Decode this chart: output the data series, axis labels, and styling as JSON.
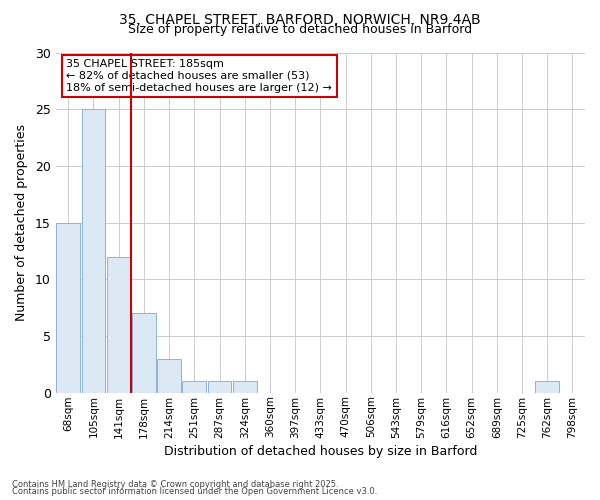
{
  "title_line1": "35, CHAPEL STREET, BARFORD, NORWICH, NR9 4AB",
  "title_line2": "Size of property relative to detached houses in Barford",
  "xlabel": "Distribution of detached houses by size in Barford",
  "ylabel": "Number of detached properties",
  "categories": [
    "68sqm",
    "105sqm",
    "141sqm",
    "178sqm",
    "214sqm",
    "251sqm",
    "287sqm",
    "324sqm",
    "360sqm",
    "397sqm",
    "433sqm",
    "470sqm",
    "506sqm",
    "543sqm",
    "579sqm",
    "616sqm",
    "652sqm",
    "689sqm",
    "725sqm",
    "762sqm",
    "798sqm"
  ],
  "values": [
    15,
    25,
    12,
    7,
    3,
    1,
    1,
    1,
    0,
    0,
    0,
    0,
    0,
    0,
    0,
    0,
    0,
    0,
    0,
    1,
    0
  ],
  "bar_color": "#dce9f5",
  "bar_edge_color": "#8ab4d8",
  "red_line_index": 2.5,
  "annotation_title": "35 CHAPEL STREET: 185sqm",
  "annotation_line1": "← 82% of detached houses are smaller (53)",
  "annotation_line2": "18% of semi-detached houses are larger (12) →",
  "annotation_box_color": "#ffffff",
  "annotation_box_edge_color": "#cc0000",
  "red_line_color": "#cc0000",
  "ylim": [
    0,
    30
  ],
  "yticks": [
    0,
    5,
    10,
    15,
    20,
    25,
    30
  ],
  "grid_color": "#cccccc",
  "background_color": "#ffffff",
  "plot_bg_color": "#ffffff",
  "footnote1": "Contains HM Land Registry data © Crown copyright and database right 2025.",
  "footnote2": "Contains public sector information licensed under the Open Government Licence v3.0."
}
